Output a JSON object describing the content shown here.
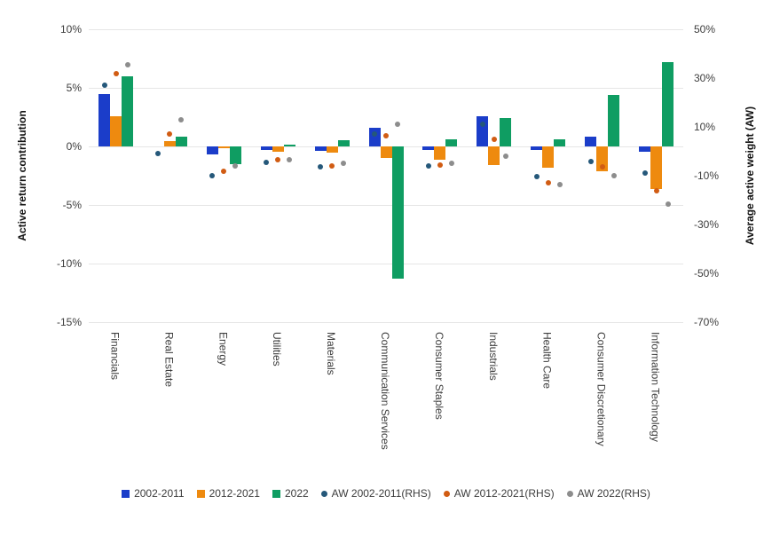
{
  "figure": {
    "background": "#ffffff",
    "left_axis_title": "Active return contribution",
    "right_axis_title": "Average active weight (AW)"
  },
  "colors": {
    "bar_blue": "#1b3dc9",
    "bar_orange": "#ee8a0f",
    "bar_green": "#0f9d62",
    "dot_navy": "#25587a",
    "dot_rust": "#d15c13",
    "dot_gray": "#8d8d8d",
    "gridline": "#e6e6e6",
    "tick_text": "#3d3d3d"
  },
  "chart_data": {
    "type": "bar",
    "title": "",
    "grid": true,
    "legend_position": "bottom",
    "categories": [
      "Financials",
      "Real Estate",
      "Energy",
      "Utilities",
      "Materials",
      "Communication Services",
      "Consumer Staples",
      "Industrials",
      "Health Care",
      "Consumer Discretionary",
      "Information Technology"
    ],
    "series": [
      {
        "name": "2002-2011",
        "type": "bar",
        "axis": "left",
        "color": "#1b3dc9",
        "values": [
          4.5,
          0.0,
          -0.65,
          -0.3,
          -0.4,
          1.6,
          -0.3,
          2.6,
          -0.3,
          0.8,
          -0.45
        ]
      },
      {
        "name": "2012-2021",
        "type": "bar",
        "axis": "left",
        "color": "#ee8a0f",
        "values": [
          2.6,
          0.45,
          -0.15,
          -0.45,
          -0.55,
          -0.95,
          -1.15,
          -1.6,
          -1.8,
          -2.1,
          -3.6
        ]
      },
      {
        "name": "2022",
        "type": "bar",
        "axis": "left",
        "color": "#0f9d62",
        "values": [
          6.0,
          0.8,
          -1.5,
          0.15,
          0.5,
          -11.3,
          0.6,
          2.4,
          0.6,
          4.4,
          7.2
        ]
      },
      {
        "name": "AW 2002-2011(RHS)",
        "type": "scatter",
        "axis": "right",
        "color": "#25587a",
        "values": [
          27,
          -1,
          -10,
          -4.5,
          -6.5,
          7,
          -6,
          11,
          -10.5,
          -4,
          -9
        ]
      },
      {
        "name": "AW 2012-2021(RHS)",
        "type": "scatter",
        "axis": "right",
        "color": "#d15c13",
        "values": [
          32,
          7,
          -8,
          -3.5,
          -6,
          6.5,
          -5.5,
          5,
          -13,
          -6.5,
          -16
        ]
      },
      {
        "name": "AW 2022(RHS)",
        "type": "scatter",
        "axis": "right",
        "color": "#8d8d8d",
        "values": [
          35.5,
          13,
          -6,
          -3.5,
          -5,
          11,
          -5,
          -2,
          -13.5,
          -10,
          -21.5
        ]
      }
    ],
    "left_axis": {
      "label": "Active return contribution",
      "ticks": [
        "10%",
        "5%",
        "0%",
        "-5%",
        "-10%",
        "-15%"
      ],
      "tick_values": [
        10,
        5,
        0,
        -5,
        -10,
        -15
      ],
      "max": 10,
      "min": -15
    },
    "right_axis": {
      "label": "Average active weight (AW)",
      "ticks": [
        "50%",
        "30%",
        "10%",
        "-10%",
        "-30%",
        "-50%",
        "-70%"
      ],
      "tick_values": [
        50,
        30,
        10,
        -10,
        -30,
        -50,
        -70
      ],
      "max": 50,
      "min": -70
    }
  }
}
